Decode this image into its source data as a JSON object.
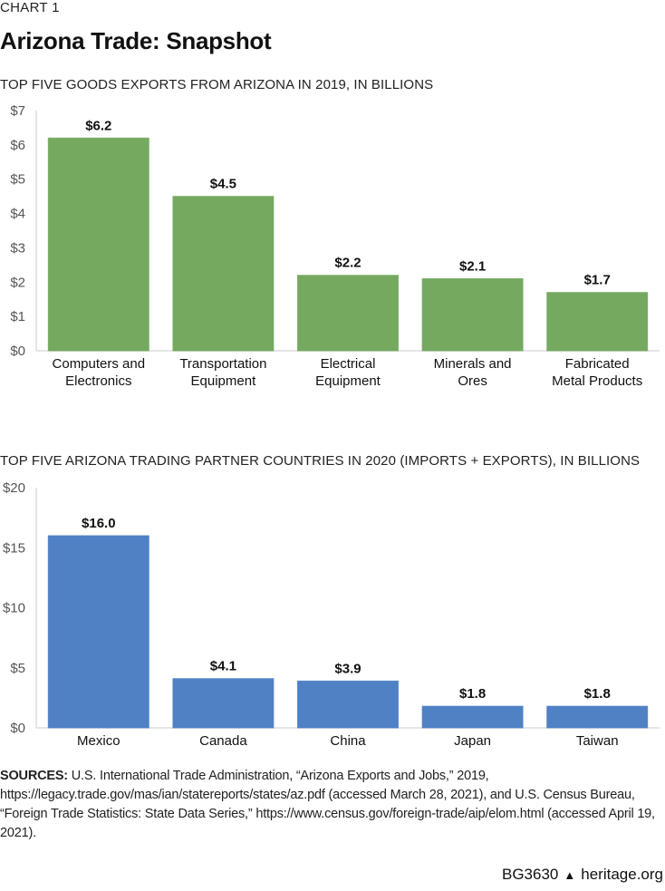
{
  "header": {
    "kicker": "CHART 1",
    "title": "Arizona Trade: Snapshot"
  },
  "chart_data": [
    {
      "type": "bar",
      "title": "TOP FIVE GOODS EXPORTS FROM ARIZONA IN 2019, IN BILLIONS",
      "categories": [
        [
          "Computers and",
          "Electronics"
        ],
        [
          "Transportation",
          "Equipment"
        ],
        [
          "Electrical",
          "Equipment"
        ],
        [
          "Minerals and",
          "Ores"
        ],
        [
          "Fabricated",
          "Metal Products"
        ]
      ],
      "values": [
        6.2,
        4.5,
        2.2,
        2.1,
        1.7
      ],
      "data_labels": [
        "$6.2",
        "$4.5",
        "$2.2",
        "$2.1",
        "$1.7"
      ],
      "ylim": [
        0,
        7
      ],
      "yticks": [
        "$0",
        "$1",
        "$2",
        "$3",
        "$4",
        "$5",
        "$6",
        "$7"
      ],
      "ytick_values": [
        0,
        1,
        2,
        3,
        4,
        5,
        6,
        7
      ],
      "grid": false,
      "color": "#74a95f"
    },
    {
      "type": "bar",
      "title": "TOP FIVE ARIZONA TRADING PARTNER COUNTRIES IN 2020 (IMPORTS + EXPORTS), IN BILLIONS",
      "categories": [
        [
          "Mexico"
        ],
        [
          "Canada"
        ],
        [
          "China"
        ],
        [
          "Japan"
        ],
        [
          "Taiwan"
        ]
      ],
      "values": [
        16.0,
        4.1,
        3.9,
        1.8,
        1.8
      ],
      "data_labels": [
        "$16.0",
        "$4.1",
        "$3.9",
        "$1.8",
        "$1.8"
      ],
      "ylim": [
        0,
        20
      ],
      "yticks": [
        "$0",
        "$5",
        "$10",
        "$15",
        "$20"
      ],
      "ytick_values": [
        0,
        5,
        10,
        15,
        20
      ],
      "grid": false,
      "color": "#4f81c4"
    }
  ],
  "sources": {
    "label": "SOURCES:",
    "text": "U.S. International Trade Administration, “Arizona Exports and Jobs,” 2019, https://legacy.trade.gov/mas/ian/statereports/states/az.pdf (accessed March 28, 2021), and U.S. Census Bureau, “Foreign Trade Statistics: State Data Series,” https://www.census.gov/foreign-trade/aip/elom.html (accessed April 19, 2021)."
  },
  "footer": {
    "code": "BG3630",
    "icon": "liberty-bell-icon",
    "site": "heritage.org"
  }
}
